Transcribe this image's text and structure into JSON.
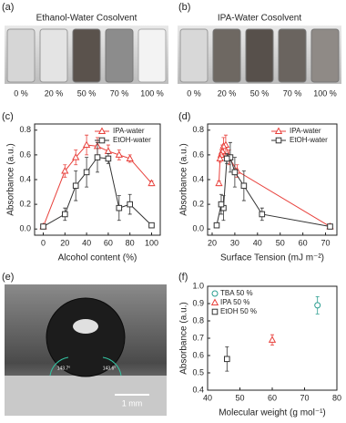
{
  "photos": [
    {
      "label": "(a)",
      "title": "Ethanol-Water Cosolvent",
      "vial_labels": [
        "0 %",
        "20 %",
        "50 %",
        "70 %",
        "100 %"
      ]
    },
    {
      "label": "(b)",
      "title": "IPA-Water Cosolvent",
      "vial_labels": [
        "0 %",
        "20 %",
        "50 %",
        "70 %",
        "100 %"
      ]
    },
    {
      "label": "(e)",
      "scale_bar": "1 mm",
      "angles": [
        "143.7°",
        "143.6°"
      ]
    }
  ],
  "chart_data": [
    {
      "type": "line",
      "panel": "(c)",
      "x_label": "Alcohol content (%)",
      "y_label": "Absorbance (a.u.)",
      "x": [
        0,
        20,
        30,
        40,
        50,
        60,
        70,
        80,
        100
      ],
      "series": [
        {
          "name": "IPA-water",
          "color": "#e8413c",
          "marker": "triangle",
          "values": [
            0.02,
            0.47,
            0.58,
            0.68,
            0.67,
            0.63,
            0.6,
            0.57,
            0.37
          ],
          "errors": [
            0.01,
            0.05,
            0.06,
            0.08,
            0.07,
            0.05,
            0.04,
            0.03,
            0.02
          ]
        },
        {
          "name": "EtOH-water",
          "color": "#333333",
          "marker": "square",
          "values": [
            0.02,
            0.12,
            0.35,
            0.46,
            0.58,
            0.57,
            0.17,
            0.2,
            0.03
          ],
          "errors": [
            0.01,
            0.05,
            0.12,
            0.12,
            0.12,
            0.04,
            0.1,
            0.08,
            0.01
          ]
        }
      ],
      "xlim": [
        -8,
        108
      ],
      "xticks": [
        0,
        20,
        40,
        60,
        80,
        100
      ],
      "ylim": [
        -0.05,
        0.85
      ],
      "yticks": [
        {
          "value": 0,
          "label": "0.0"
        },
        {
          "value": 0.2,
          "label": "0.2"
        },
        {
          "value": 0.4,
          "label": "0.4"
        },
        {
          "value": 0.6,
          "label": "0.6"
        },
        {
          "value": 0.8,
          "label": "0.8"
        }
      ],
      "legend": "upper right"
    },
    {
      "type": "line",
      "panel": "(d)",
      "x_label": "Surface Tension (mJ m⁻²)",
      "y_label": "Absorbance (a.u.)",
      "series": [
        {
          "name": "IPA-water",
          "color": "#e8413c",
          "marker": "triangle",
          "x": [
            72,
            31,
            27.5,
            26,
            25,
            24.5,
            24,
            23.5,
            23
          ],
          "values": [
            0.02,
            0.47,
            0.58,
            0.68,
            0.67,
            0.63,
            0.6,
            0.57,
            0.37
          ],
          "errors": [
            0.01,
            0.05,
            0.06,
            0.08,
            0.07,
            0.05,
            0.04,
            0.03,
            0.02
          ]
        },
        {
          "name": "EtOH-water",
          "color": "#333333",
          "marker": "square",
          "x": [
            72,
            42,
            34,
            30,
            28,
            26.5,
            25,
            24,
            22
          ],
          "values": [
            0.02,
            0.12,
            0.35,
            0.46,
            0.58,
            0.57,
            0.17,
            0.2,
            0.03
          ],
          "errors": [
            0.01,
            0.05,
            0.12,
            0.12,
            0.12,
            0.04,
            0.1,
            0.08,
            0.01
          ]
        }
      ],
      "xlim": [
        18,
        75
      ],
      "xticks": [
        20,
        30,
        40,
        50,
        60,
        70
      ],
      "ylim": [
        -0.05,
        0.85
      ],
      "yticks": [
        {
          "value": 0,
          "label": "0.0"
        },
        {
          "value": 0.2,
          "label": "0.2"
        },
        {
          "value": 0.4,
          "label": "0.4"
        },
        {
          "value": 0.6,
          "label": "0.6"
        },
        {
          "value": 0.8,
          "label": "0.8"
        }
      ],
      "legend": "upper right"
    },
    {
      "type": "scatter",
      "panel": "(f)",
      "x_label": "Molecular weight (g mol⁻¹)",
      "y_label": "Absorbance (a.u.)",
      "series": [
        {
          "name": "TBA 50 %",
          "color": "#2a9d8f",
          "marker": "circle",
          "x": [
            74
          ],
          "values": [
            0.89
          ],
          "errors": [
            0.05
          ]
        },
        {
          "name": "IPA 50 %",
          "color": "#e8413c",
          "marker": "triangle",
          "x": [
            60
          ],
          "values": [
            0.69
          ],
          "errors": [
            0.03
          ]
        },
        {
          "name": "EtOH 50 %",
          "color": "#333333",
          "marker": "square",
          "x": [
            46
          ],
          "values": [
            0.58
          ],
          "errors": [
            0.07
          ]
        }
      ],
      "xlim": [
        40,
        80
      ],
      "xticks": [
        40,
        50,
        60,
        70,
        80
      ],
      "ylim": [
        0.4,
        1.0
      ],
      "yticks": [
        {
          "value": 0.4,
          "label": "0.4"
        },
        {
          "value": 0.5,
          "label": "0.5"
        },
        {
          "value": 0.6,
          "label": "0.6"
        },
        {
          "value": 0.7,
          "label": "0.7"
        },
        {
          "value": 0.8,
          "label": "0.8"
        },
        {
          "value": 0.9,
          "label": "0.9"
        },
        {
          "value": 1.0,
          "label": "1.0"
        }
      ],
      "legend": "upper left"
    }
  ]
}
